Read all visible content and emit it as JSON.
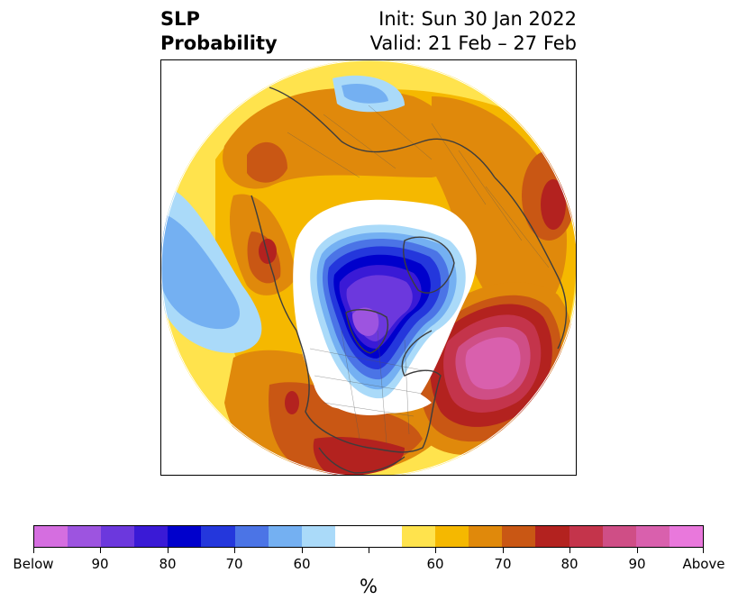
{
  "header": {
    "variable": "SLP",
    "product": "Probability",
    "init": "Init: Sun 30 Jan 2022",
    "valid": "Valid: 21 Feb – 27 Feb"
  },
  "colorbar": {
    "unit": "%",
    "colors": [
      "#d56ee0",
      "#9d54e0",
      "#6c38dd",
      "#3a1ad6",
      "#0000cc",
      "#2437dc",
      "#4b74e6",
      "#74b0f2",
      "#aadaf9",
      "#ffffff",
      "#ffffff",
      "#ffe34d",
      "#f5b800",
      "#e0890b",
      "#c95714",
      "#b3221f",
      "#c4344b",
      "#cf4e86",
      "#d960ad",
      "#e978dc"
    ],
    "labels": [
      "Below",
      "90",
      "80",
      "70",
      "60",
      "60",
      "70",
      "80",
      "90",
      "Above"
    ]
  },
  "map": {
    "projection": "north-polar-stereographic",
    "features": [
      {
        "name": "north-atlantic-high-probability",
        "category": "above",
        "level": "90+"
      },
      {
        "name": "arctic-canada-low-probability",
        "category": "below",
        "level": "90+"
      },
      {
        "name": "north-pacific-below-anomaly",
        "category": "below",
        "level": "60-70"
      },
      {
        "name": "europe-above-anomaly",
        "category": "above",
        "level": "70-80"
      },
      {
        "name": "siberia-above-anomaly",
        "category": "above",
        "level": "60-70"
      },
      {
        "name": "southern-us-above-anomaly",
        "category": "above",
        "level": "80-90"
      },
      {
        "name": "eastern-mediterranean-above-anomaly",
        "category": "above",
        "level": "80-90"
      }
    ]
  }
}
